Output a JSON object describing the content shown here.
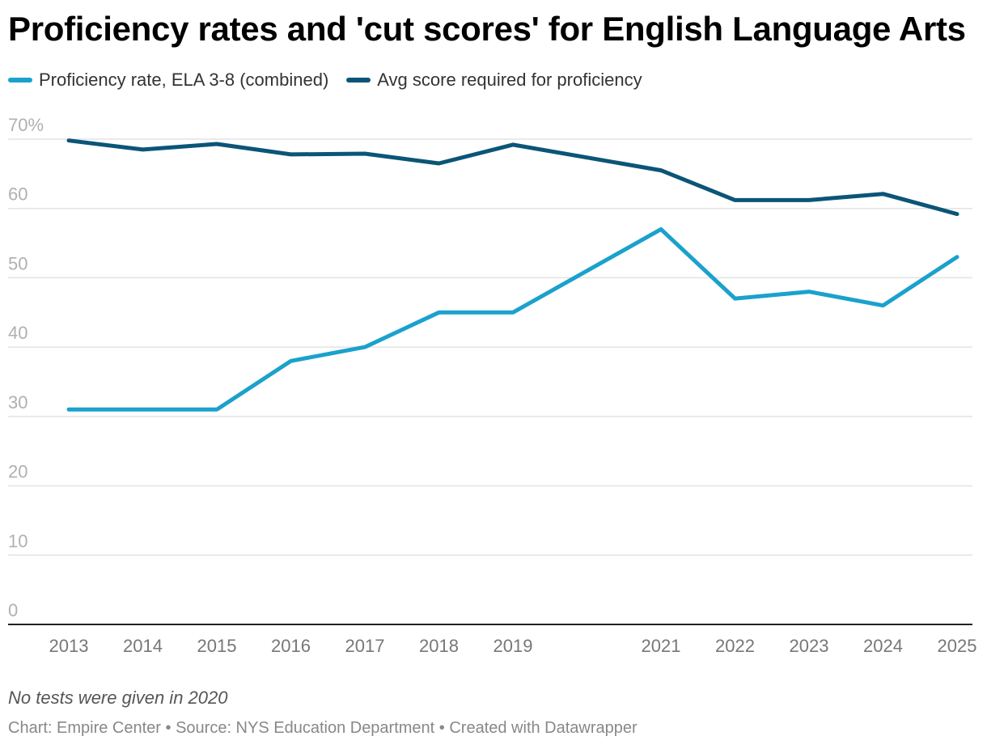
{
  "chart_data": {
    "type": "line",
    "title": "Proficiency rates and 'cut scores' for English Language Arts",
    "x": [
      2013,
      2014,
      2015,
      2016,
      2017,
      2018,
      2019,
      2021,
      2022,
      2023,
      2024,
      2025
    ],
    "x_ticks": [
      "2013",
      "2014",
      "2015",
      "2016",
      "2017",
      "2018",
      "2019",
      "2021",
      "2022",
      "2023",
      "2024",
      "2025"
    ],
    "series": [
      {
        "name": "Proficiency rate, ELA 3-8 (combined)",
        "color": "#1ba1cc",
        "values": [
          31,
          31,
          31,
          38,
          40,
          45,
          45,
          57,
          47,
          48,
          46,
          53
        ]
      },
      {
        "name": "Avg score required for proficiency",
        "color": "#0b5577",
        "values": [
          69.8,
          68.5,
          69.3,
          67.8,
          67.9,
          66.5,
          69.2,
          65.5,
          61.2,
          61.2,
          62.1,
          59.2
        ]
      }
    ],
    "y_ticks": [
      "0",
      "10",
      "20",
      "30",
      "40",
      "50",
      "60",
      "70%"
    ],
    "y_tick_values": [
      0,
      10,
      20,
      30,
      40,
      50,
      60,
      70
    ],
    "ylim": [
      0,
      70
    ],
    "xlim": [
      2013,
      2025
    ],
    "grid": true,
    "legend": "top-left",
    "note": "No tests were given in 2020",
    "footer": "Chart: Empire Center • Source: NYS Education Department • Created with Datawrapper"
  }
}
